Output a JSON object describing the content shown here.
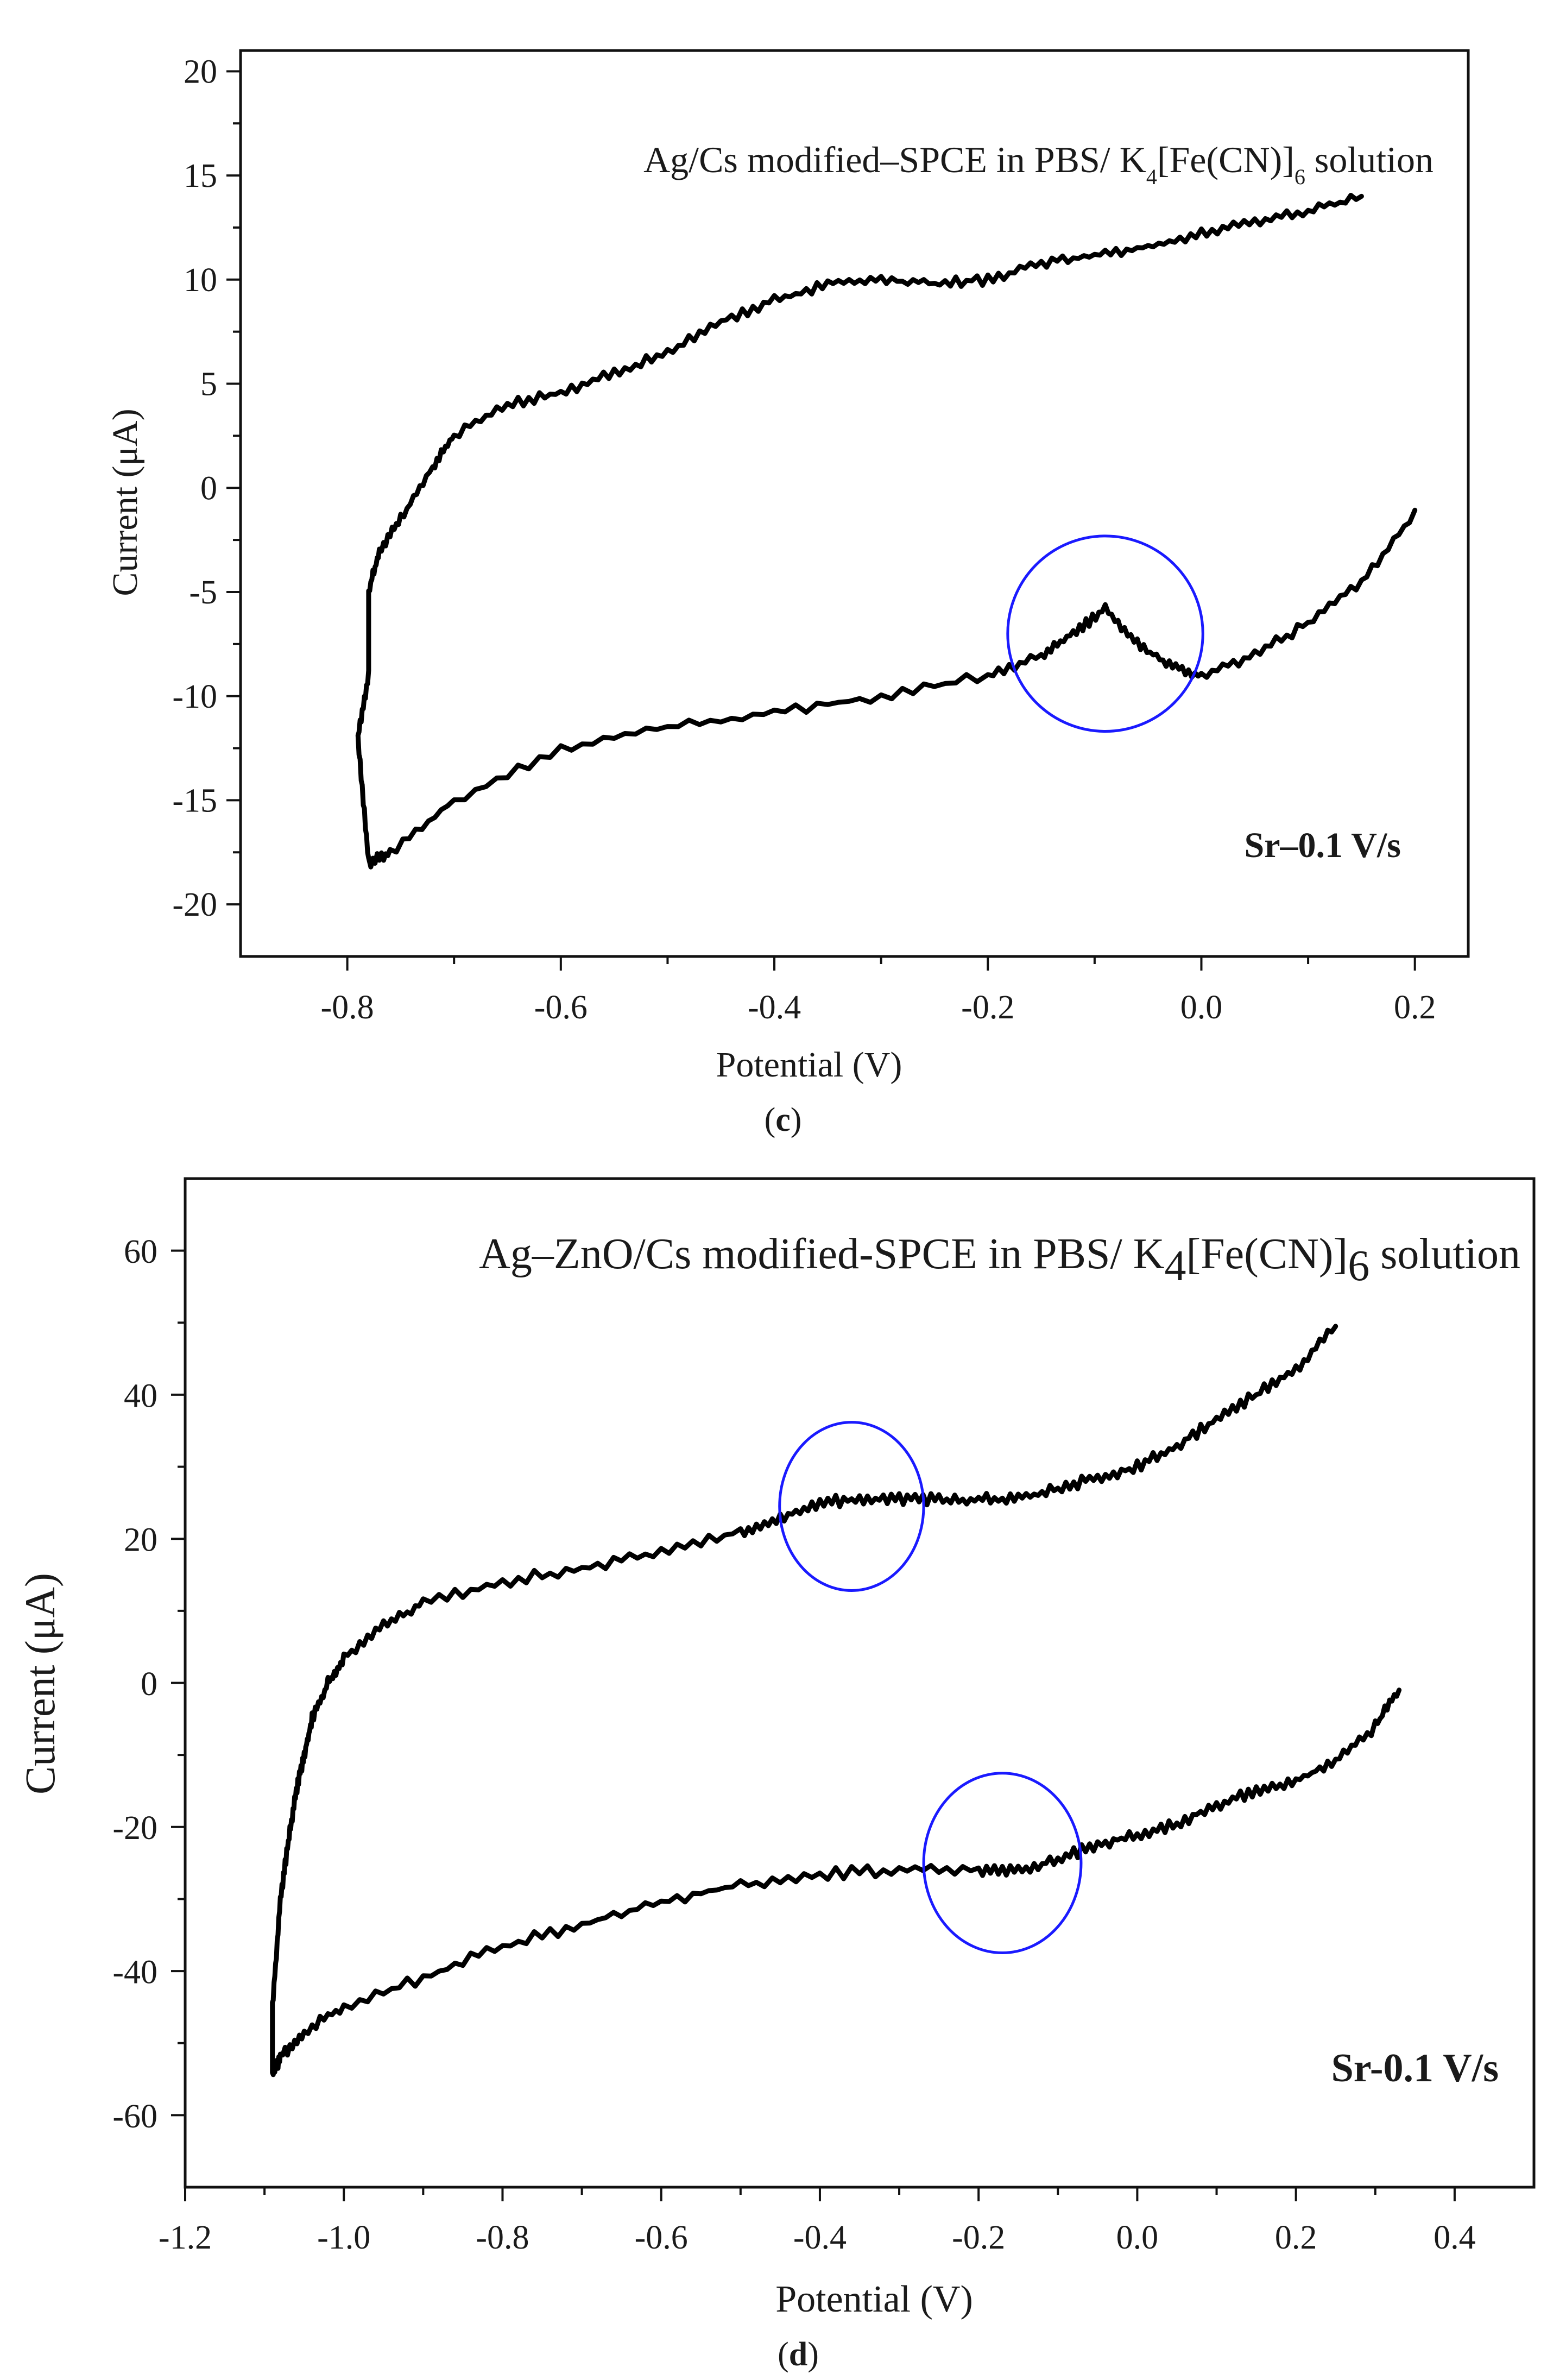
{
  "chart_data": [
    {
      "id": "c",
      "type": "line",
      "caption_letter": "c",
      "title_main": "Ag/Cs modified–SPCE in PBS/ K",
      "title_sub1": "4",
      "title_mid": "[Fe(CN)]",
      "title_sub2": "6",
      "title_end": " solution",
      "xlabel": "Potential (V)",
      "ylabel": "Current (μA)",
      "xlim": [
        -0.9,
        0.25
      ],
      "ylim": [
        -22.5,
        21
      ],
      "xticks": [
        -0.8,
        -0.6,
        -0.4,
        -0.2,
        0.0,
        0.2
      ],
      "xtick_labels": [
        "-0.8",
        "-0.6",
        "-0.4",
        "-0.2",
        "0.0",
        "0.2"
      ],
      "yticks": [
        -20,
        -15,
        -10,
        -5,
        0,
        5,
        10,
        15,
        20
      ],
      "ytick_labels": [
        "-20",
        "-15",
        "-10",
        "-5",
        "0",
        "5",
        "10",
        "15",
        "20"
      ],
      "annotation": "Sr–0.1 V/s",
      "series": [
        {
          "name": "Ag/Cs modified-SPCE",
          "x": [
            0.2,
            0.15,
            0.1,
            0.05,
            0.0,
            -0.03,
            -0.06,
            -0.09,
            -0.12,
            -0.15,
            -0.2,
            -0.3,
            -0.4,
            -0.5,
            -0.6,
            -0.7,
            -0.76,
            -0.78,
            -0.79,
            -0.78,
            -0.78,
            -0.77,
            -0.75,
            -0.72,
            -0.7,
            -0.65,
            -0.6,
            -0.55,
            -0.5,
            -0.45,
            -0.4,
            -0.35,
            -0.3,
            -0.25,
            -0.2,
            -0.15,
            -0.1,
            -0.05,
            0.0,
            0.05,
            0.1,
            0.15
          ],
          "y": [
            -1.2,
            -4.5,
            -6.5,
            -8.0,
            -9.0,
            -8.5,
            -7.5,
            -5.8,
            -7.0,
            -8.0,
            -9.0,
            -10.0,
            -10.8,
            -11.5,
            -12.5,
            -15.0,
            -17.5,
            -18.0,
            -12.0,
            -9.0,
            -5.0,
            -3.0,
            -1.5,
            1.0,
            2.5,
            4.0,
            4.6,
            5.5,
            6.5,
            8.0,
            9.0,
            9.8,
            10.0,
            9.8,
            10.0,
            10.8,
            11.2,
            11.6,
            12.2,
            12.8,
            13.3,
            14.0
          ]
        }
      ],
      "circles": [
        {
          "x": -0.09,
          "y": -7.0,
          "rx": 0.0914,
          "ry": 4.69
        }
      ]
    },
    {
      "id": "d",
      "type": "line",
      "caption_letter": "d",
      "title_main": "Ag–ZnO/Cs modified-SPCE in PBS/ K",
      "title_sub1": "4",
      "title_mid": "[Fe(CN)]",
      "title_sub2": "6",
      "title_end": " solution",
      "xlabel": "Potential (V)",
      "ylabel": "Current (μA)",
      "xlim": [
        -1.2,
        0.5
      ],
      "ylim": [
        -70,
        70
      ],
      "xticks": [
        -1.2,
        -1.0,
        -0.8,
        -0.6,
        -0.4,
        -0.2,
        0.0,
        0.2,
        0.4
      ],
      "xtick_labels": [
        "-1.2",
        "-1.0",
        "-0.8",
        "-0.6",
        "-0.4",
        "-0.2",
        "0.0",
        "0.2",
        "0.4"
      ],
      "yticks": [
        -60,
        -40,
        -20,
        0,
        20,
        40,
        60
      ],
      "ytick_labels": [
        "-60",
        "-40",
        "-20",
        "0",
        "20",
        "40",
        "60"
      ],
      "annotation": "Sr-0.1 V/s",
      "series": [
        {
          "name": "Ag-ZnO/Cs modified-SPCE",
          "x": [
            0.33,
            0.3,
            0.25,
            0.2,
            0.15,
            0.1,
            0.05,
            0.0,
            -0.05,
            -0.1,
            -0.15,
            -0.2,
            -0.3,
            -0.4,
            -0.5,
            -0.6,
            -0.7,
            -0.8,
            -0.9,
            -1.0,
            -1.05,
            -1.08,
            -1.09,
            -1.09,
            -1.08,
            -1.07,
            -1.06,
            -1.05,
            -1.04,
            -1.02,
            -1.0,
            -0.95,
            -0.9,
            -0.8,
            -0.7,
            -0.6,
            -0.5,
            -0.45,
            -0.4,
            -0.35,
            -0.3,
            -0.25,
            -0.2,
            -0.15,
            -0.1,
            -0.05,
            0.0,
            0.05,
            0.1,
            0.15,
            0.2,
            0.25
          ],
          "y": [
            -1.0,
            -6.0,
            -11.0,
            -13.5,
            -15.0,
            -17.0,
            -19.5,
            -21.0,
            -22.5,
            -24.5,
            -26.0,
            -26.0,
            -26.0,
            -26.5,
            -28.0,
            -30.5,
            -33.5,
            -36.5,
            -41.0,
            -45.0,
            -48.5,
            -52.0,
            -54.5,
            -45.0,
            -30.0,
            -22.0,
            -15.0,
            -10.0,
            -5.0,
            0.0,
            3.5,
            8.0,
            11.0,
            14.0,
            16.0,
            18.0,
            21.0,
            23.0,
            25.0,
            25.5,
            25.5,
            25.5,
            25.5,
            25.5,
            27.0,
            28.5,
            30.0,
            33.0,
            36.5,
            40.0,
            43.5,
            49.5
          ]
        }
      ],
      "circles": [
        {
          "x": -0.36,
          "y": 24.5,
          "rx": 0.0908,
          "ry": 11.68
        },
        {
          "x": -0.17,
          "y": -25.0,
          "rx": 0.0992,
          "ry": 12.47
        }
      ]
    }
  ]
}
